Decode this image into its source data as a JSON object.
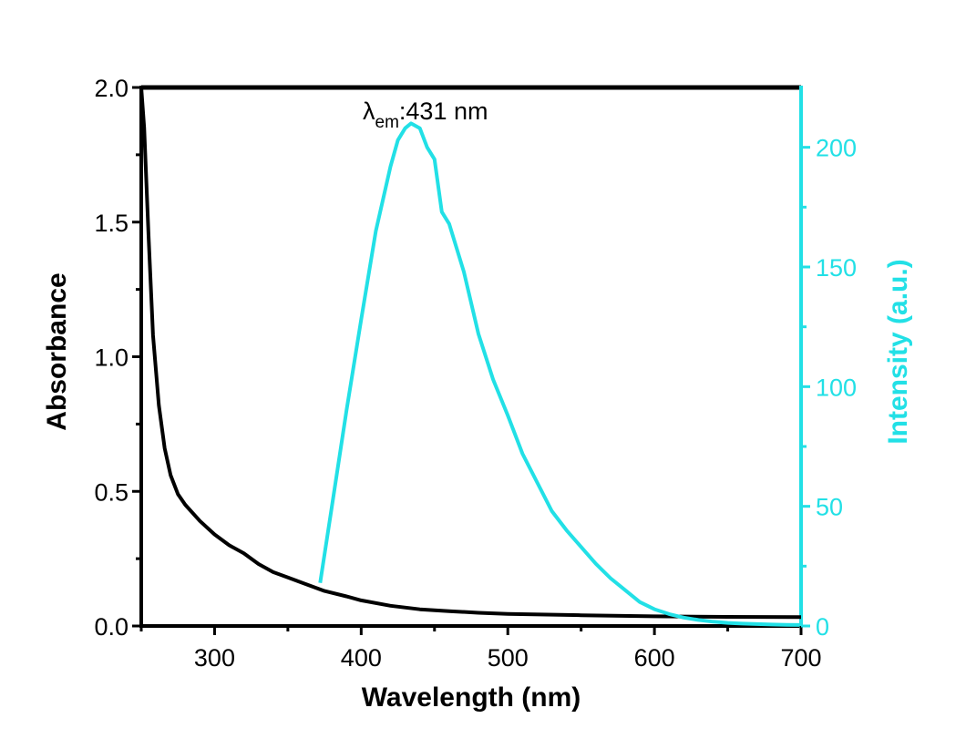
{
  "chart_data": {
    "type": "line",
    "title": "",
    "xlabel": "Wavelength (nm)",
    "ylabel": "Absorbance",
    "y2label": "Intensity (a.u.)",
    "xlim": [
      250,
      700
    ],
    "ylim": [
      0,
      2.0
    ],
    "y2lim": [
      0,
      225
    ],
    "x_ticks": [
      300,
      400,
      500,
      600,
      700
    ],
    "y_ticks": [
      0.0,
      0.5,
      1.0,
      1.5,
      2.0
    ],
    "y2_ticks": [
      0,
      50,
      100,
      150,
      200
    ],
    "x_tick_labels": [
      "300",
      "400",
      "500",
      "600",
      "700"
    ],
    "y_tick_labels": [
      "0.0",
      "0.5",
      "1.0",
      "1.5",
      "2.0"
    ],
    "y2_tick_labels": [
      "0",
      "50",
      "100",
      "150",
      "200"
    ],
    "grid": false,
    "legend": "none",
    "annotation": {
      "lambda": "λ",
      "subscript": "em",
      "text": ":431 nm",
      "x": 431,
      "y2": 210
    },
    "colors": {
      "absorbance": "#000000",
      "emission": "#22e0e6",
      "axis": "#000000"
    },
    "series": [
      {
        "axis": "left",
        "x": [
          250,
          252,
          255,
          258,
          262,
          266,
          270,
          275,
          280,
          290,
          300,
          310,
          320,
          330,
          340,
          350,
          360,
          375,
          390,
          400,
          420,
          440,
          460,
          480,
          500,
          550,
          600,
          650,
          700
        ],
        "values": [
          2.0,
          1.85,
          1.45,
          1.08,
          0.82,
          0.66,
          0.56,
          0.49,
          0.45,
          0.39,
          0.34,
          0.3,
          0.27,
          0.23,
          0.2,
          0.18,
          0.16,
          0.13,
          0.11,
          0.095,
          0.075,
          0.062,
          0.055,
          0.049,
          0.045,
          0.04,
          0.036,
          0.034,
          0.033
        ]
      },
      {
        "axis": "right",
        "x": [
          372,
          380,
          390,
          400,
          410,
          420,
          425,
          430,
          434,
          440,
          445,
          450,
          455,
          460,
          470,
          480,
          490,
          500,
          510,
          520,
          530,
          540,
          550,
          560,
          570,
          580,
          590,
          600,
          610,
          620,
          630,
          640,
          650,
          660,
          670,
          680,
          690,
          700
        ],
        "values": [
          18,
          50,
          90,
          128,
          165,
          192,
          203,
          208,
          210,
          208,
          200,
          195,
          173,
          168,
          148,
          122,
          103,
          88,
          72,
          60,
          48,
          40,
          33,
          26,
          20,
          15,
          10,
          7,
          5,
          3.5,
          2.5,
          1.8,
          1.3,
          1.0,
          0.8,
          0.6,
          0.5,
          0.4
        ]
      }
    ]
  }
}
